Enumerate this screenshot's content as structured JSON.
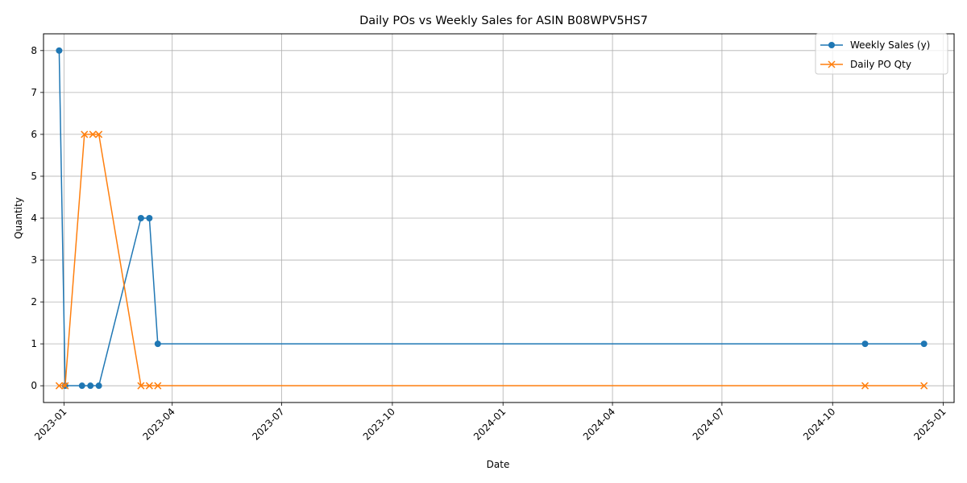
{
  "chart_data": {
    "type": "line",
    "title": "Daily POs vs Weekly Sales for ASIN B08WPV5HS7",
    "xlabel": "Date",
    "ylabel": "Quantity",
    "x_ticks": [
      "2023-01",
      "2023-04",
      "2023-07",
      "2023-10",
      "2024-01",
      "2024-04",
      "2024-07",
      "2024-10",
      "2025-01"
    ],
    "y_ticks": [
      0,
      1,
      2,
      3,
      4,
      5,
      6,
      7,
      8
    ],
    "xlim": [
      "2022-12-15",
      "2025-01-10"
    ],
    "ylim": [
      -0.4,
      8.4
    ],
    "grid": true,
    "legend_position": "top-right",
    "series": [
      {
        "name": "Weekly Sales (y)",
        "color": "#1f77b4",
        "marker": "circle",
        "points": [
          {
            "x": "2022-12-28",
            "y": 8
          },
          {
            "x": "2023-01-02",
            "y": 0
          },
          {
            "x": "2023-01-16",
            "y": 0
          },
          {
            "x": "2023-01-23",
            "y": 0
          },
          {
            "x": "2023-01-30",
            "y": 0
          },
          {
            "x": "2023-03-06",
            "y": 4
          },
          {
            "x": "2023-03-13",
            "y": 4
          },
          {
            "x": "2023-03-20",
            "y": 1
          },
          {
            "x": "2024-10-28",
            "y": 1
          },
          {
            "x": "2024-12-16",
            "y": 1
          }
        ]
      },
      {
        "name": "Daily PO Qty",
        "color": "#ff7f0e",
        "marker": "x",
        "points": [
          {
            "x": "2022-12-28",
            "y": 0
          },
          {
            "x": "2023-01-02",
            "y": 0
          },
          {
            "x": "2023-01-18",
            "y": 6
          },
          {
            "x": "2023-01-25",
            "y": 6
          },
          {
            "x": "2023-01-30",
            "y": 6
          },
          {
            "x": "2023-03-06",
            "y": 0
          },
          {
            "x": "2023-03-13",
            "y": 0
          },
          {
            "x": "2023-03-20",
            "y": 0
          },
          {
            "x": "2024-10-28",
            "y": 0
          },
          {
            "x": "2024-12-16",
            "y": 0
          }
        ]
      }
    ]
  }
}
